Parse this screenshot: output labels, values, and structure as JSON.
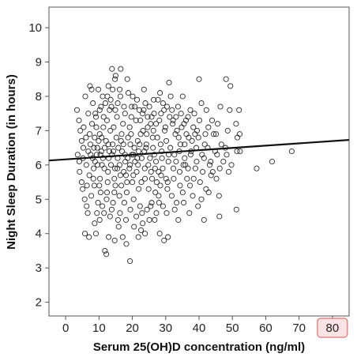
{
  "chart_data": {
    "type": "scatter",
    "title": "",
    "xlabel": "Serum 25(OH)D concentration (ng/ml)",
    "ylabel": "Night Sleep Duration (in hours)",
    "xlim": [
      -5,
      85
    ],
    "ylim": [
      1.6,
      10.6
    ],
    "x_ticks": [
      0,
      10,
      20,
      30,
      40,
      50,
      60,
      70,
      80
    ],
    "y_ticks": [
      2,
      3,
      4,
      5,
      6,
      7,
      8,
      9,
      10
    ],
    "highlighted_x_tick": 80,
    "grid": false,
    "legend": "none",
    "fit_line": {
      "type": "linear",
      "x": [
        -5,
        85
      ],
      "y": [
        6.13,
        6.73
      ]
    },
    "points": [
      [
        7.8,
        8.2
      ],
      [
        13.9,
        8.8
      ],
      [
        16.5,
        8.8
      ],
      [
        15,
        8.6
      ],
      [
        14.8,
        8.5
      ],
      [
        18.5,
        8.5
      ],
      [
        31,
        8.4
      ],
      [
        40,
        8.5
      ],
      [
        48.1,
        8.5
      ],
      [
        49.4,
        8.3
      ],
      [
        12.8,
        8.3
      ],
      [
        23.5,
        8.2
      ],
      [
        16.2,
        8.2
      ],
      [
        7.3,
        8.3
      ],
      [
        9.8,
        8.2
      ],
      [
        11.1,
        8.0
      ],
      [
        13.5,
        7.9
      ],
      [
        20.1,
        8.0
      ],
      [
        28.3,
        8.1
      ],
      [
        31.5,
        8.0
      ],
      [
        35.1,
        8.0
      ],
      [
        46.4,
        7.7
      ],
      [
        49.2,
        7.6
      ],
      [
        52,
        7.6
      ],
      [
        51.1,
        7.2
      ],
      [
        5.9,
        8.0
      ],
      [
        8.2,
        7.8
      ],
      [
        8.9,
        7.5
      ],
      [
        10.2,
        7.6
      ],
      [
        3.4,
        7.6
      ],
      [
        4,
        7.3
      ],
      [
        4.4,
        7.0
      ],
      [
        4.8,
        6.7
      ],
      [
        5.3,
        6.5
      ],
      [
        6.8,
        6.4
      ],
      [
        3.6,
        6.3
      ],
      [
        4.1,
        6.1
      ],
      [
        5.2,
        6.2
      ],
      [
        4.2,
        5.8
      ],
      [
        4.8,
        5.5
      ],
      [
        5.1,
        5.3
      ],
      [
        5.7,
        5.0
      ],
      [
        6.3,
        4.8
      ],
      [
        6.6,
        4.6
      ],
      [
        5.8,
        4.0
      ],
      [
        7,
        3.9
      ],
      [
        8.7,
        4.3
      ],
      [
        9.1,
        4.0
      ],
      [
        10.2,
        4.4
      ],
      [
        11.8,
        3.5
      ],
      [
        12.2,
        3.4
      ],
      [
        12.9,
        3.9
      ],
      [
        14.7,
        3.8
      ],
      [
        17.1,
        3.9
      ],
      [
        18.2,
        3.7
      ],
      [
        19.3,
        3.2
      ],
      [
        21.8,
        3.9
      ],
      [
        22.6,
        4.1
      ],
      [
        23.8,
        4.0
      ],
      [
        28.2,
        4.0
      ],
      [
        29.5,
        3.8
      ],
      [
        30.7,
        3.9
      ],
      [
        15.9,
        4.2
      ],
      [
        16.3,
        4.6
      ],
      [
        26.7,
        4.4
      ],
      [
        33.8,
        4.4
      ],
      [
        37.1,
        4.6
      ],
      [
        39.7,
        4.8
      ],
      [
        41.5,
        4.4
      ],
      [
        46.1,
        4.5
      ],
      [
        51.2,
        4.7
      ],
      [
        42.9,
        5.2
      ],
      [
        46,
        5.1
      ],
      [
        45.2,
        5.6
      ],
      [
        48.9,
        5.8
      ],
      [
        57.3,
        5.9
      ],
      [
        61.9,
        6.1
      ],
      [
        67.8,
        6.4
      ],
      [
        52.3,
        6.4
      ],
      [
        51.4,
        6.4
      ],
      [
        48.3,
        6.3
      ],
      [
        51.5,
        6.8
      ],
      [
        52.2,
        6.9
      ],
      [
        45.1,
        6.9
      ],
      [
        41.7,
        6.6
      ],
      [
        39.2,
        6.5
      ],
      [
        35.7,
        6.2
      ],
      [
        38.3,
        7.1
      ],
      [
        36.7,
        7.4
      ],
      [
        32.2,
        7.3
      ],
      [
        33.4,
        7.0
      ],
      [
        29.5,
        7.6
      ],
      [
        26.5,
        7.5
      ],
      [
        27.7,
        7.9
      ],
      [
        22.1,
        7.6
      ],
      [
        19.7,
        7.4
      ],
      [
        17.5,
        7.7
      ],
      [
        14.9,
        7.6
      ],
      [
        12.4,
        7.3
      ],
      [
        11.3,
        7.1
      ],
      [
        10.2,
        6.9
      ],
      [
        8.7,
        6.8
      ],
      [
        7.4,
        6.6
      ],
      [
        9.3,
        6.3
      ],
      [
        10.9,
        6.0
      ],
      [
        12.7,
        5.8
      ],
      [
        14.6,
        5.6
      ],
      [
        16.7,
        5.4
      ],
      [
        18.3,
        5.2
      ],
      [
        20.4,
        5.0
      ],
      [
        22.3,
        4.8
      ],
      [
        24.4,
        4.7
      ],
      [
        25.8,
        4.9
      ],
      [
        27.9,
        5.1
      ],
      [
        30.5,
        5.3
      ],
      [
        32.4,
        5.6
      ],
      [
        34.2,
        5.8
      ],
      [
        35.9,
        6.0
      ],
      [
        37.5,
        6.3
      ],
      [
        39.3,
        6.1
      ],
      [
        41.5,
        6.2
      ],
      [
        43.2,
        6.0
      ],
      [
        44.8,
        6.4
      ],
      [
        46.7,
        6.6
      ],
      [
        43.9,
        7.3
      ],
      [
        42.2,
        7.6
      ],
      [
        40.7,
        7.8
      ],
      [
        38.6,
        7.5
      ],
      [
        35.5,
        7.2
      ],
      [
        33.7,
        7.7
      ],
      [
        31.2,
        7.4
      ],
      [
        29.7,
        7.0
      ],
      [
        27.5,
        6.8
      ],
      [
        25.5,
        7.2
      ],
      [
        23.2,
        7.0
      ],
      [
        21.6,
        6.7
      ],
      [
        19.6,
        6.9
      ],
      [
        17.3,
        6.6
      ],
      [
        15.2,
        6.8
      ],
      [
        13.4,
        7.0
      ],
      [
        11.7,
        6.5
      ],
      [
        9.9,
        6.7
      ],
      [
        8.1,
        6.2
      ],
      [
        6.2,
        6.0
      ],
      [
        7.1,
        5.7
      ],
      [
        8.6,
        5.4
      ],
      [
        10.5,
        5.2
      ],
      [
        12.3,
        5.0
      ],
      [
        14.2,
        4.9
      ],
      [
        16.1,
        5.1
      ],
      [
        18.1,
        5.7
      ],
      [
        20,
        5.5
      ],
      [
        21.9,
        5.3
      ],
      [
        23.8,
        5.6
      ],
      [
        25.6,
        5.8
      ],
      [
        27.3,
        5.5
      ],
      [
        29.1,
        5.9
      ],
      [
        30.8,
        6.1
      ],
      [
        32.6,
        6.3
      ],
      [
        34.4,
        6.6
      ],
      [
        36.2,
        6.9
      ],
      [
        37.9,
        6.7
      ],
      [
        15.6,
        6.2
      ],
      [
        17.9,
        6.1
      ],
      [
        19.9,
        6.3
      ],
      [
        21.7,
        6.0
      ],
      [
        23.6,
        6.4
      ],
      [
        25.3,
        6.2
      ],
      [
        27.1,
        6.1
      ],
      [
        28.8,
        6.4
      ],
      [
        13.1,
        6.4
      ],
      [
        11.2,
        6.2
      ],
      [
        17.2,
        7.2
      ],
      [
        19.2,
        7.1
      ],
      [
        21.1,
        7.3
      ],
      [
        23.1,
        7.5
      ],
      [
        25.1,
        7.7
      ],
      [
        15.4,
        7.4
      ],
      [
        13.7,
        7.7
      ],
      [
        11.9,
        7.8
      ],
      [
        24.2,
        6.6
      ],
      [
        26.2,
        6.5
      ],
      [
        20.6,
        6.5
      ],
      [
        18.7,
        6.8
      ],
      [
        16.8,
        6.9
      ],
      [
        14.4,
        7.1
      ],
      [
        22.8,
        6.2
      ],
      [
        24.8,
        6.0
      ],
      [
        26.8,
        5.9
      ],
      [
        28.6,
        5.7
      ],
      [
        19.1,
        5.9
      ],
      [
        17.4,
        5.8
      ],
      [
        15.5,
        5.9
      ],
      [
        13.6,
        6.0
      ],
      [
        21.3,
        5.8
      ],
      [
        12.1,
        6.7
      ],
      [
        10.7,
        6.4
      ],
      [
        9.6,
        6.0
      ],
      [
        8.4,
        5.9
      ],
      [
        16.9,
        6.4
      ],
      [
        22.5,
        6.9
      ],
      [
        24.6,
        7.1
      ],
      [
        18.6,
        6.2
      ],
      [
        14.3,
        6.4
      ],
      [
        20.8,
        6.1
      ],
      [
        26.1,
        6.8
      ],
      [
        28.1,
        7.3
      ],
      [
        30.2,
        6.7
      ],
      [
        32.9,
        6.9
      ],
      [
        34.8,
        7.1
      ],
      [
        36.7,
        5.9
      ],
      [
        38.4,
        5.6
      ],
      [
        40.3,
        5.5
      ],
      [
        42.1,
        5.3
      ],
      [
        44.1,
        5.8
      ],
      [
        47.3,
        6.1
      ],
      [
        49.7,
        6.0
      ],
      [
        31.8,
        5.1
      ],
      [
        33.3,
        4.9
      ],
      [
        35.1,
        5.2
      ],
      [
        37.3,
        5.4
      ],
      [
        29.2,
        4.8
      ],
      [
        27.2,
        4.6
      ],
      [
        25.1,
        4.4
      ],
      [
        23.1,
        4.3
      ],
      [
        21.2,
        4.5
      ],
      [
        19.4,
        4.7
      ],
      [
        17.6,
        4.9
      ],
      [
        13.8,
        4.7
      ],
      [
        11.5,
        4.6
      ],
      [
        9.7,
        4.9
      ],
      [
        7.7,
        5.1
      ],
      [
        6.4,
        5.4
      ],
      [
        7.9,
        7.2
      ],
      [
        9.1,
        7.4
      ],
      [
        10.6,
        7.7
      ],
      [
        12.5,
        8.0
      ],
      [
        14.1,
        8.2
      ],
      [
        16.4,
        8.0
      ],
      [
        18.8,
        8.1
      ],
      [
        21.4,
        7.9
      ],
      [
        23.9,
        7.8
      ],
      [
        26.4,
        7.9
      ],
      [
        29.2,
        7.8
      ],
      [
        31.9,
        7.6
      ],
      [
        34.6,
        7.5
      ],
      [
        37.4,
        7.6
      ],
      [
        40.1,
        7.3
      ],
      [
        42.8,
        7.1
      ],
      [
        45.6,
        7.2
      ],
      [
        48.6,
        7.0
      ],
      [
        44.4,
        6.9
      ],
      [
        41.9,
        6.9
      ],
      [
        39.4,
        7.0
      ],
      [
        36.9,
        6.8
      ],
      [
        34.1,
        6.4
      ],
      [
        31.4,
        6.5
      ],
      [
        28.9,
        6.2
      ],
      [
        26.6,
        6.3
      ],
      [
        24.1,
        6.5
      ],
      [
        21.9,
        6.4
      ],
      [
        19.4,
        6.6
      ],
      [
        16.6,
        6.7
      ],
      [
        14.1,
        6.6
      ],
      [
        12.9,
        6.2
      ],
      [
        10.8,
        6.8
      ],
      [
        22.7,
        5.5
      ],
      [
        24.9,
        5.3
      ],
      [
        26.9,
        5.2
      ],
      [
        28.4,
        5.4
      ],
      [
        30.1,
        5.6
      ],
      [
        16.4,
        5.7
      ],
      [
        14.9,
        5.4
      ],
      [
        12.6,
        5.5
      ],
      [
        10.3,
        5.6
      ],
      [
        8.8,
        6.1
      ],
      [
        7.5,
        6.3
      ],
      [
        6.1,
        6.8
      ],
      [
        5.4,
        7.1
      ],
      [
        6.8,
        7.5
      ],
      [
        19.8,
        7.7
      ],
      [
        22.4,
        7.3
      ],
      [
        24.6,
        7.4
      ],
      [
        27.1,
        7.2
      ],
      [
        29.9,
        7.1
      ],
      [
        32.1,
        7.2
      ],
      [
        33.9,
        6.8
      ],
      [
        35.7,
        6.6
      ],
      [
        37.6,
        6.4
      ],
      [
        39.8,
        6.8
      ],
      [
        42.6,
        6.5
      ],
      [
        45.4,
        6.3
      ],
      [
        47.9,
        6.5
      ],
      [
        43.6,
        5.7
      ],
      [
        41.1,
        5.8
      ],
      [
        38.9,
        5.9
      ],
      [
        36.4,
        5.6
      ],
      [
        34.3,
        5.4
      ],
      [
        32.3,
        5.9
      ],
      [
        30.6,
        5.5
      ],
      [
        18.4,
        5.5
      ],
      [
        20.3,
        5.7
      ],
      [
        14.6,
        5.2
      ],
      [
        12.4,
        5.2
      ],
      [
        10.1,
        5.4
      ],
      [
        8.3,
        5.6
      ],
      [
        9.4,
        4.6
      ],
      [
        11,
        4.8
      ],
      [
        13.3,
        4.5
      ],
      [
        15.7,
        4.4
      ],
      [
        18.1,
        4.4
      ],
      [
        20.5,
        4.2
      ],
      [
        22.9,
        4.6
      ],
      [
        25.5,
        4.8
      ],
      [
        28,
        4.9
      ],
      [
        30.3,
        4.6
      ],
      [
        32.7,
        4.7
      ],
      [
        35.4,
        4.9
      ],
      [
        38.1,
        5.1
      ],
      [
        40.7,
        5.0
      ],
      [
        17.8,
        6.3
      ],
      [
        15.8,
        6.5
      ],
      [
        13.9,
        6.3
      ],
      [
        11.6,
        5.9
      ],
      [
        9.5,
        6.5
      ],
      [
        20.3,
        6.3
      ],
      [
        22.2,
        6.6
      ],
      [
        24.3,
        6.9
      ],
      [
        26.3,
        7.0
      ],
      [
        28.5,
        6.6
      ],
      [
        30.9,
        6.3
      ],
      [
        33.1,
        6.1
      ],
      [
        35.3,
        6.0
      ],
      [
        27.9,
        5.8
      ],
      [
        25.9,
        5.6
      ],
      [
        23.7,
        5.9
      ],
      [
        21.5,
        6.2
      ],
      [
        19.3,
        6.0
      ],
      [
        16.2,
        6.0
      ],
      [
        14.8,
        5.9
      ],
      [
        12.8,
        6.6
      ],
      [
        10.4,
        6.3
      ],
      [
        8.5,
        6.5
      ],
      [
        7.2,
        6.9
      ],
      [
        9.2,
        7.1
      ],
      [
        11.4,
        7.4
      ],
      [
        13.2,
        7.6
      ],
      [
        15.6,
        7.8
      ],
      [
        17.8,
        7.5
      ],
      [
        20.7,
        7.7
      ],
      [
        23.4,
        7.6
      ],
      [
        25.8,
        7.4
      ],
      [
        28.6,
        7.5
      ],
      [
        30.4,
        7.7
      ],
      [
        33.1,
        7.4
      ],
      [
        36.1,
        7.3
      ],
      [
        38.8,
        6.9
      ],
      [
        40.9,
        6.3
      ],
      [
        43.5,
        6.1
      ],
      [
        46.2,
        5.9
      ]
    ]
  }
}
